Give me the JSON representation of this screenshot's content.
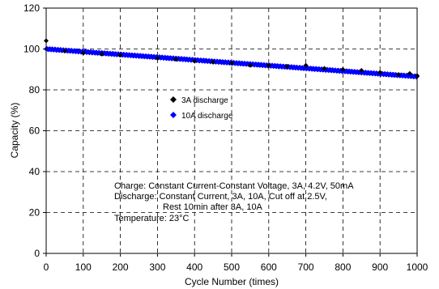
{
  "chart_data": {
    "type": "scatter",
    "xlabel": "Cycle Number (times)",
    "ylabel": "Capacity (%)",
    "xlim": [
      0,
      1000
    ],
    "ylim": [
      0,
      120
    ],
    "xticks": [
      "0",
      "100",
      "200",
      "300",
      "400",
      "500",
      "600",
      "700",
      "800",
      "900",
      "1000"
    ],
    "yticks": [
      "0",
      "20",
      "40",
      "60",
      "80",
      "100",
      "120"
    ],
    "grid": true,
    "legend_position": "center",
    "series": [
      {
        "name": "3A discharge",
        "marker": "diamond",
        "color": "#000000",
        "points": [
          [
            0,
            104
          ],
          [
            50,
            99
          ],
          [
            100,
            98
          ],
          [
            150,
            97.5
          ],
          [
            200,
            97
          ],
          [
            300,
            95.5
          ],
          [
            350,
            95
          ],
          [
            400,
            94
          ],
          [
            450,
            93.5
          ],
          [
            500,
            93
          ],
          [
            550,
            92
          ],
          [
            600,
            92
          ],
          [
            650,
            91.5
          ],
          [
            700,
            92
          ],
          [
            750,
            90.5
          ],
          [
            800,
            90
          ],
          [
            850,
            89.5
          ],
          [
            900,
            88.5
          ],
          [
            950,
            87.5
          ],
          [
            980,
            88
          ],
          [
            1000,
            87
          ]
        ]
      },
      {
        "name": "10A discharge",
        "marker": "diamond",
        "color": "#0000ff",
        "start": [
          0,
          100
        ],
        "end": [
          1000,
          86.5
        ],
        "count": 500
      }
    ],
    "annotations": [
      "Charge: Constant Current-Constant Voltage, 3A, 4.2V, 50mA",
      "Discharge: Constant Current, 3A, 10A, Cut off at 2.5V,",
      "Rest 10min after 3A, 10A",
      "Temperature: 23°C"
    ]
  }
}
